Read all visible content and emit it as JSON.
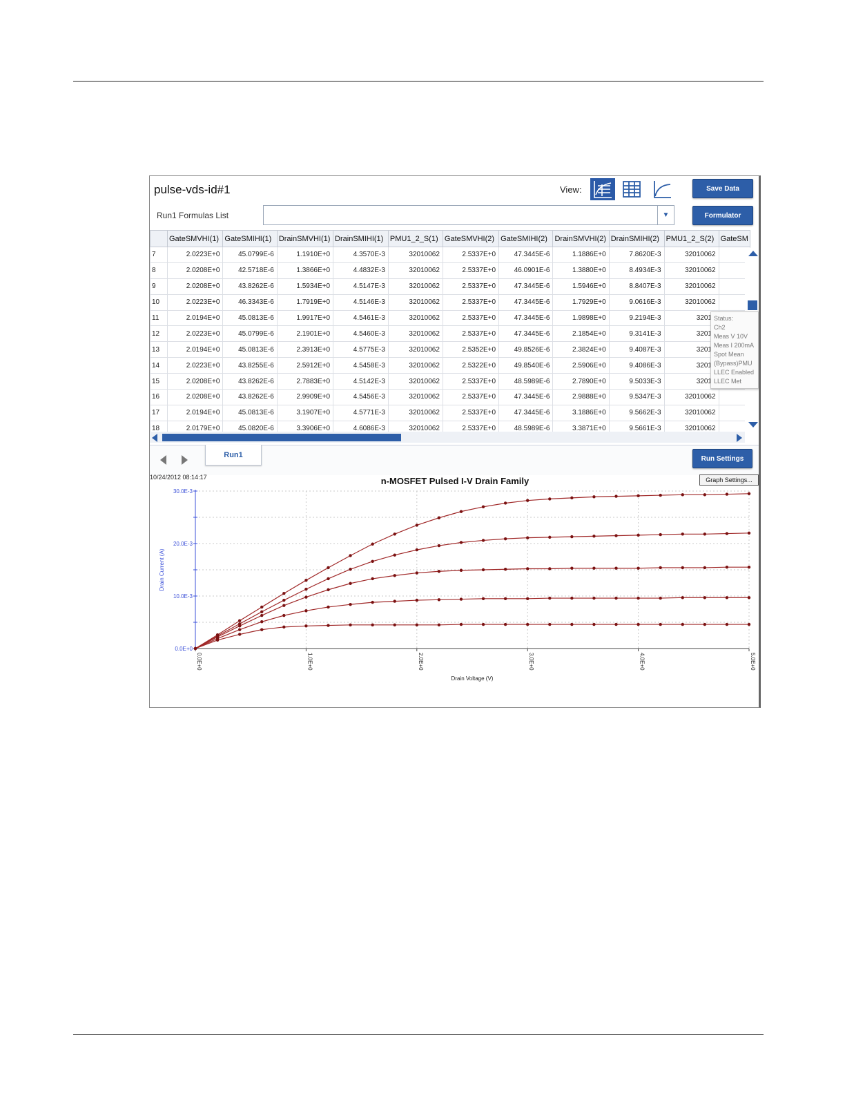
{
  "window": {
    "title": "pulse-vds-id#1",
    "view_label": "View:",
    "view_icons": [
      "graph-and-sheet-view-icon",
      "sheet-view-icon",
      "graph-view-icon"
    ],
    "buttons": {
      "save_data": "Save Data",
      "formulator": "Formulator",
      "run_settings": "Run Settings",
      "graph_settings": "Graph Settings..."
    },
    "formulas": {
      "label": "Run1 Formulas List",
      "value": ""
    },
    "accent_color": "#2d5ea8"
  },
  "sheet": {
    "columns": [
      "",
      "GateSMVHI(1)",
      "GateSMIHI(1)",
      "DrainSMVHI(1)",
      "DrainSMIHI(1)",
      "PMU1_2_S(1)",
      "GateSMVHI(2)",
      "GateSMIHI(2)",
      "DrainSMVHI(2)",
      "DrainSMIHI(2)",
      "PMU1_2_S(2)",
      "GateSM"
    ],
    "rows": [
      [
        "7",
        "2.0223E+0",
        "45.0799E-6",
        "1.1910E+0",
        "4.3570E-3",
        "32010062",
        "2.5337E+0",
        "47.3445E-6",
        "1.1886E+0",
        "7.8620E-3",
        "32010062",
        ""
      ],
      [
        "8",
        "2.0208E+0",
        "42.5718E-6",
        "1.3866E+0",
        "4.4832E-3",
        "32010062",
        "2.5337E+0",
        "46.0901E-6",
        "1.3880E+0",
        "8.4934E-3",
        "32010062",
        ""
      ],
      [
        "9",
        "2.0208E+0",
        "43.8262E-6",
        "1.5934E+0",
        "4.5147E-3",
        "32010062",
        "2.5337E+0",
        "47.3445E-6",
        "1.5946E+0",
        "8.8407E-3",
        "32010062",
        ""
      ],
      [
        "10",
        "2.0223E+0",
        "46.3343E-6",
        "1.7919E+0",
        "4.5146E-3",
        "32010062",
        "2.5337E+0",
        "47.3445E-6",
        "1.7929E+0",
        "9.0616E-3",
        "32010062",
        ""
      ],
      [
        "11",
        "2.0194E+0",
        "45.0813E-6",
        "1.9917E+0",
        "4.5461E-3",
        "32010062",
        "2.5337E+0",
        "47.3445E-6",
        "1.9898E+0",
        "9.2194E-3",
        "32010",
        ""
      ],
      [
        "12",
        "2.0223E+0",
        "45.0799E-6",
        "2.1901E+0",
        "4.5460E-3",
        "32010062",
        "2.5337E+0",
        "47.3445E-6",
        "2.1854E+0",
        "9.3141E-3",
        "32010",
        ""
      ],
      [
        "13",
        "2.0194E+0",
        "45.0813E-6",
        "2.3913E+0",
        "4.5775E-3",
        "32010062",
        "2.5352E+0",
        "49.8526E-6",
        "2.3824E+0",
        "9.4087E-3",
        "32010",
        ""
      ],
      [
        "14",
        "2.0223E+0",
        "43.8255E-6",
        "2.5912E+0",
        "4.5458E-3",
        "32010062",
        "2.5322E+0",
        "49.8540E-6",
        "2.5906E+0",
        "9.4086E-3",
        "32010",
        ""
      ],
      [
        "15",
        "2.0208E+0",
        "43.8262E-6",
        "2.7883E+0",
        "4.5142E-3",
        "32010062",
        "2.5337E+0",
        "48.5989E-6",
        "2.7890E+0",
        "9.5033E-3",
        "32010",
        ""
      ],
      [
        "16",
        "2.0208E+0",
        "43.8262E-6",
        "2.9909E+0",
        "4.5456E-3",
        "32010062",
        "2.5337E+0",
        "47.3445E-6",
        "2.9888E+0",
        "9.5347E-3",
        "32010062",
        ""
      ],
      [
        "17",
        "2.0194E+0",
        "45.0813E-6",
        "3.1907E+0",
        "4.5771E-3",
        "32010062",
        "2.5337E+0",
        "47.3445E-6",
        "3.1886E+0",
        "9.5662E-3",
        "32010062",
        ""
      ],
      [
        "18",
        "2.0179E+0",
        "45.0820E-6",
        "3.3906E+0",
        "4.6086E-3",
        "32010062",
        "2.5337E+0",
        "48.5989E-6",
        "3.3871E+0",
        "9.5661E-3",
        "32010062",
        ""
      ]
    ],
    "tooltip_lines": [
      "Status:",
      "Ch2",
      "Meas V 10V",
      "Meas I 200mA",
      "Spot Mean",
      "(Bypass)PMU",
      "LLEC Enabled",
      "LLEC Met"
    ]
  },
  "tabs": {
    "active": "Run1"
  },
  "graph": {
    "timestamp": "10/24/2012 08:14:17"
  },
  "chart_data": {
    "type": "line",
    "title": "n-MOSFET Pulsed I-V Drain Family",
    "xlabel": "Drain Voltage (V)",
    "ylabel": "Drain Current (A)",
    "xlim": [
      0,
      5
    ],
    "ylim": [
      0,
      0.03
    ],
    "x_ticks": [
      "0.0E+0",
      "1.0E+0",
      "2.0E+0",
      "3.0E+0",
      "4.0E+0",
      "5.0E+0"
    ],
    "y_ticks": [
      "0.0E+0",
      "10.0E-3",
      "20.0E-3",
      "30.0E-3"
    ],
    "grid": true,
    "line_color": "#a02828",
    "marker_color": "#7a1212",
    "x": [
      0,
      0.2,
      0.4,
      0.6,
      0.8,
      1.0,
      1.2,
      1.4,
      1.6,
      1.8,
      2.0,
      2.2,
      2.4,
      2.6,
      2.8,
      3.0,
      3.2,
      3.4,
      3.6,
      3.8,
      4.0,
      4.2,
      4.4,
      4.6,
      4.8,
      5.0
    ],
    "series": [
      {
        "values": [
          0,
          0.0016,
          0.0027,
          0.0036,
          0.0041,
          0.0043,
          0.0044,
          0.0045,
          0.0045,
          0.0045,
          0.0045,
          0.0045,
          0.0046,
          0.0046,
          0.0046,
          0.0046,
          0.0046,
          0.0046,
          0.0046,
          0.0046,
          0.0046,
          0.0046,
          0.0046,
          0.0046,
          0.0046,
          0.0046
        ]
      },
      {
        "values": [
          0,
          0.0019,
          0.0036,
          0.0051,
          0.0063,
          0.0072,
          0.0079,
          0.0084,
          0.0088,
          0.009,
          0.0092,
          0.0093,
          0.0094,
          0.0095,
          0.0095,
          0.0095,
          0.0096,
          0.0096,
          0.0096,
          0.0096,
          0.0096,
          0.0096,
          0.0097,
          0.0097,
          0.0097,
          0.0097
        ]
      },
      {
        "values": [
          0,
          0.0022,
          0.0043,
          0.0063,
          0.0082,
          0.0098,
          0.0112,
          0.0124,
          0.0133,
          0.0139,
          0.0144,
          0.0147,
          0.0149,
          0.015,
          0.0151,
          0.0152,
          0.0152,
          0.0153,
          0.0153,
          0.0153,
          0.0153,
          0.0154,
          0.0154,
          0.0154,
          0.0155,
          0.0155
        ]
      },
      {
        "values": [
          0,
          0.0024,
          0.0047,
          0.007,
          0.0092,
          0.0113,
          0.0133,
          0.0151,
          0.0166,
          0.0178,
          0.0188,
          0.0196,
          0.0202,
          0.0206,
          0.0209,
          0.0211,
          0.0212,
          0.0213,
          0.0214,
          0.0215,
          0.0216,
          0.0217,
          0.0218,
          0.0218,
          0.0219,
          0.022
        ]
      },
      {
        "values": [
          0,
          0.0026,
          0.0053,
          0.0079,
          0.0105,
          0.013,
          0.0154,
          0.0177,
          0.0199,
          0.0218,
          0.0235,
          0.0249,
          0.0261,
          0.027,
          0.0277,
          0.0282,
          0.0285,
          0.0287,
          0.0289,
          0.029,
          0.0291,
          0.0292,
          0.0293,
          0.0293,
          0.0294,
          0.0295
        ]
      }
    ]
  }
}
